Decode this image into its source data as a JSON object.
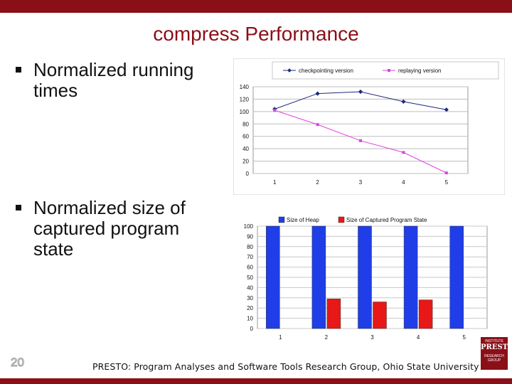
{
  "slide": {
    "title": "compress Performance",
    "bullet1": "Normalized running times",
    "bullet2": "Normalized size of captured program state",
    "page_number": "20",
    "footer": "PRESTO: Program Analyses and Software Tools Research Group, Ohio State University",
    "logo": {
      "top": "INSTITUTE",
      "name": "PRESTO",
      "bottom": "RESEARCH GROUP"
    }
  },
  "colors": {
    "brand": "#8b0f17",
    "line1": "#1f2a7a",
    "line2": "#e040e0",
    "bar_heap": "#1f3ee8",
    "bar_state": "#e81818"
  },
  "chart_data": [
    {
      "type": "line",
      "title": "",
      "x": [
        1,
        2,
        3,
        4,
        5
      ],
      "series": [
        {
          "name": "checkpointing version",
          "values": [
            104,
            129,
            132,
            116,
            103
          ]
        },
        {
          "name": "replaying version",
          "values": [
            102,
            79,
            53,
            34,
            1
          ]
        }
      ],
      "ylim": [
        0,
        140
      ],
      "yticks": [
        0,
        20,
        40,
        60,
        80,
        100,
        120,
        140
      ],
      "grid": true,
      "legend": "top"
    },
    {
      "type": "bar",
      "title": "",
      "categories": [
        "1",
        "2",
        "3",
        "4",
        "5"
      ],
      "series": [
        {
          "name": "Size of Heap",
          "values": [
            100,
            100,
            100,
            100,
            100
          ]
        },
        {
          "name": "Size of Captured Program State",
          "values": [
            0,
            29,
            26,
            28,
            0
          ]
        }
      ],
      "ylim": [
        0,
        100
      ],
      "yticks": [
        0,
        10,
        20,
        30,
        40,
        50,
        60,
        70,
        80,
        90,
        100
      ],
      "grid": true,
      "legend": "top"
    }
  ]
}
